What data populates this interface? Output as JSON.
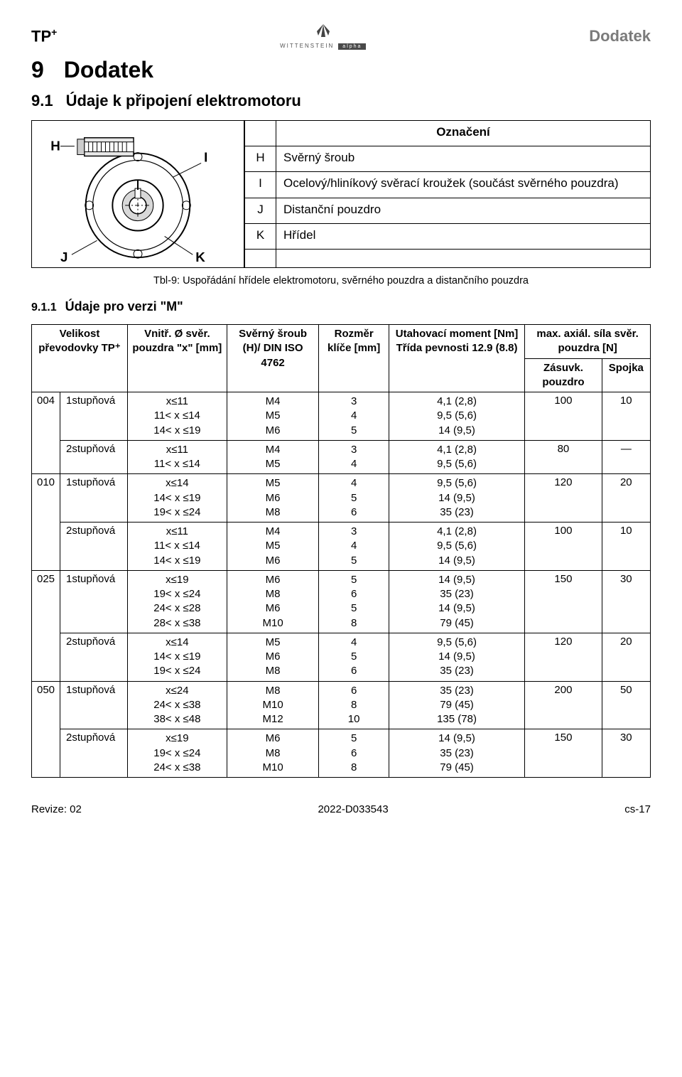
{
  "header": {
    "product": "TP",
    "product_sup": "+",
    "logo_brand": "WITTENSTEIN",
    "logo_tag": "alpha",
    "section_label": "Dodatek"
  },
  "h1": {
    "num": "9",
    "title": "Dodatek"
  },
  "h2": {
    "num": "9.1",
    "title": "Údaje k připojení elektromotoru"
  },
  "legend": {
    "head": "Označení",
    "rows": [
      {
        "key": "H",
        "val": "Svěrný šroub"
      },
      {
        "key": "I",
        "val": "Ocelový/hliníkový svěrací kroužek (součást svěrného pouzdra)"
      },
      {
        "key": "J",
        "val": "Distanční pouzdro"
      },
      {
        "key": "K",
        "val": "Hřídel"
      }
    ]
  },
  "figure": {
    "H": "H",
    "I": "I",
    "J": "J",
    "K": "K"
  },
  "caption": "Tbl-9: Uspořádání hřídele elektromotoru, svěrného pouzdra a distančního pouzdra",
  "h3": {
    "num": "9.1.1",
    "title": "Údaje pro verzi \"M\""
  },
  "table": {
    "head": {
      "c1": "Velikost převodovky TP⁺",
      "c2": "Vnitř. Ø svěr. pouzdra \"x\" [mm]",
      "c3": "Svěrný šroub (H)/ DIN ISO 4762",
      "c4": "Rozměr klíče [mm]",
      "c5": "Utahovací moment [Nm] Třída pevnosti 12.9 (8.8)",
      "c6": "max. axiál. síla svěr. pouzdra [N]",
      "c6a": "Zásuvk. pouzdro",
      "c6b": "Spojka"
    },
    "groups": [
      {
        "size": "004",
        "blocks": [
          {
            "stage": "1stupňová",
            "x": [
              "x≤11",
              "11< x ≤14",
              "14< x ≤19"
            ],
            "screw": [
              "M4",
              "M5",
              "M6"
            ],
            "key": [
              "3",
              "4",
              "5"
            ],
            "torque": [
              "4,1  (2,8)",
              "9,5  (5,6)",
              "14  (9,5)"
            ],
            "fa": "100",
            "fb": "10"
          },
          {
            "stage": "2stupňová",
            "x": [
              "x≤11",
              "11< x ≤14"
            ],
            "screw": [
              "M4",
              "M5"
            ],
            "key": [
              "3",
              "4"
            ],
            "torque": [
              "4,1  (2,8)",
              "9,5  (5,6)"
            ],
            "fa": "80",
            "fb": "—"
          }
        ]
      },
      {
        "size": "010",
        "blocks": [
          {
            "stage": "1stupňová",
            "x": [
              "x≤14",
              "14< x ≤19",
              "19< x ≤24"
            ],
            "screw": [
              "M5",
              "M6",
              "M8"
            ],
            "key": [
              "4",
              "5",
              "6"
            ],
            "torque": [
              "9,5  (5,6)",
              "14  (9,5)",
              "35  (23)"
            ],
            "fa": "120",
            "fb": "20"
          },
          {
            "stage": "2stupňová",
            "x": [
              "x≤11",
              "11< x ≤14",
              "14< x ≤19"
            ],
            "screw": [
              "M4",
              "M5",
              "M6"
            ],
            "key": [
              "3",
              "4",
              "5"
            ],
            "torque": [
              "4,1  (2,8)",
              "9,5  (5,6)",
              "14  (9,5)"
            ],
            "fa": "100",
            "fb": "10"
          }
        ]
      },
      {
        "size": "025",
        "blocks": [
          {
            "stage": "1stupňová",
            "x": [
              "x≤19",
              "19< x ≤24",
              "24< x ≤28",
              "28< x ≤38"
            ],
            "screw": [
              "M6",
              "M8",
              "M6",
              "M10"
            ],
            "key": [
              "5",
              "6",
              "5",
              "8"
            ],
            "torque": [
              "14  (9,5)",
              "35  (23)",
              "14  (9,5)",
              "79  (45)"
            ],
            "fa": "150",
            "fb": "30"
          },
          {
            "stage": "2stupňová",
            "x": [
              "x≤14",
              "14< x ≤19",
              "19< x ≤24"
            ],
            "screw": [
              "M5",
              "M6",
              "M8"
            ],
            "key": [
              "4",
              "5",
              "6"
            ],
            "torque": [
              "9,5  (5,6)",
              "14  (9,5)",
              "35  (23)"
            ],
            "fa": "120",
            "fb": "20"
          }
        ]
      },
      {
        "size": "050",
        "blocks": [
          {
            "stage": "1stupňová",
            "x": [
              "x≤24",
              "24< x ≤38",
              "38< x ≤48"
            ],
            "screw": [
              "M8",
              "M10",
              "M12"
            ],
            "key": [
              "6",
              "8",
              "10"
            ],
            "torque": [
              "35  (23)",
              "79  (45)",
              "135  (78)"
            ],
            "fa": "200",
            "fb": "50"
          },
          {
            "stage": "2stupňová",
            "x": [
              "x≤19",
              "19< x ≤24",
              "24< x ≤38"
            ],
            "screw": [
              "M6",
              "M8",
              "M10"
            ],
            "key": [
              "5",
              "6",
              "8"
            ],
            "torque": [
              "14  (9,5)",
              "35  (23)",
              "79  (45)"
            ],
            "fa": "150",
            "fb": "30"
          }
        ]
      }
    ]
  },
  "footer": {
    "left": "Revize: 02",
    "center": "2022-D033543",
    "right": "cs-17"
  }
}
